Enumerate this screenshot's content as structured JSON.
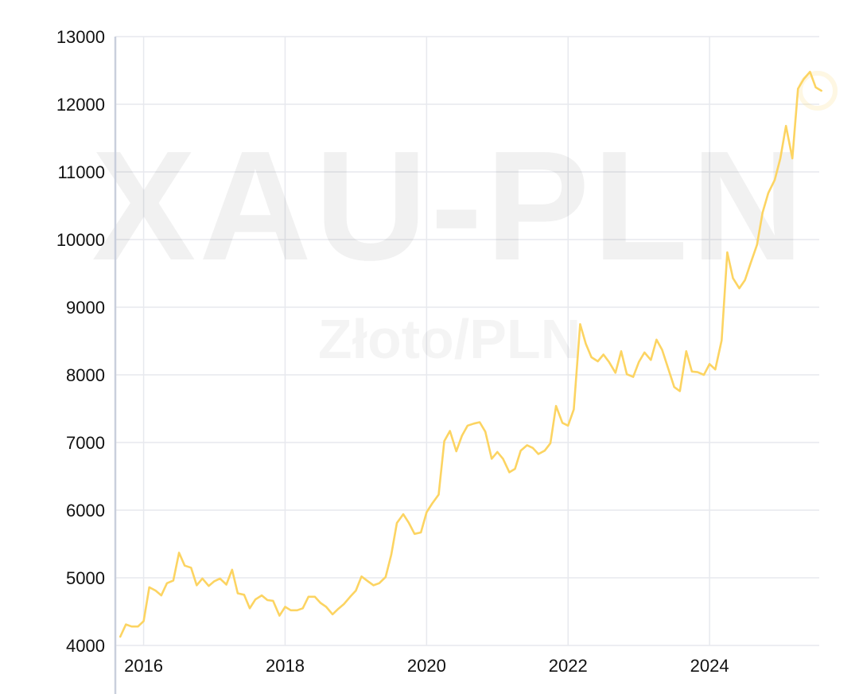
{
  "watermark": {
    "main": "XAU-PLN",
    "sub": "Złoto/PLN"
  },
  "colors": {
    "line": "#fcd462",
    "grid": "#e7e9ee",
    "axis": "#c9cfdc",
    "text": "#111111",
    "background": "#ffffff"
  },
  "chart_data": {
    "type": "line",
    "title": "",
    "xlabel": "",
    "ylabel": "",
    "xlim": [
      2015.6,
      2025.55
    ],
    "ylim": [
      4000,
      13000
    ],
    "x_ticks": [
      {
        "value": 2016,
        "label": "2016"
      },
      {
        "value": 2018,
        "label": "2018"
      },
      {
        "value": 2020,
        "label": "2020"
      },
      {
        "value": 2022,
        "label": "2022"
      },
      {
        "value": 2024,
        "label": "2024"
      }
    ],
    "y_ticks": [
      {
        "value": 4000,
        "label": "4000"
      },
      {
        "value": 5000,
        "label": "5000"
      },
      {
        "value": 6000,
        "label": "6000"
      },
      {
        "value": 7000,
        "label": "7000"
      },
      {
        "value": 8000,
        "label": "8000"
      },
      {
        "value": 9000,
        "label": "9000"
      },
      {
        "value": 10000,
        "label": "10000"
      },
      {
        "value": 11000,
        "label": "11000"
      },
      {
        "value": 12000,
        "label": "12000"
      },
      {
        "value": 13000,
        "label": "13000"
      }
    ],
    "grid": true,
    "legend": "none",
    "series": [
      {
        "points": [
          [
            2015.67,
            4130
          ],
          [
            2015.75,
            4310
          ],
          [
            2015.83,
            4280
          ],
          [
            2015.92,
            4280
          ],
          [
            2016.0,
            4360
          ],
          [
            2016.08,
            4860
          ],
          [
            2016.17,
            4810
          ],
          [
            2016.25,
            4740
          ],
          [
            2016.33,
            4920
          ],
          [
            2016.42,
            4960
          ],
          [
            2016.5,
            5370
          ],
          [
            2016.58,
            5180
          ],
          [
            2016.67,
            5150
          ],
          [
            2016.75,
            4890
          ],
          [
            2016.83,
            4990
          ],
          [
            2016.92,
            4880
          ],
          [
            2017.0,
            4950
          ],
          [
            2017.08,
            4990
          ],
          [
            2017.17,
            4900
          ],
          [
            2017.25,
            5120
          ],
          [
            2017.33,
            4770
          ],
          [
            2017.42,
            4750
          ],
          [
            2017.5,
            4550
          ],
          [
            2017.58,
            4680
          ],
          [
            2017.67,
            4740
          ],
          [
            2017.75,
            4670
          ],
          [
            2017.83,
            4660
          ],
          [
            2017.92,
            4440
          ],
          [
            2018.0,
            4570
          ],
          [
            2018.08,
            4520
          ],
          [
            2018.17,
            4520
          ],
          [
            2018.25,
            4550
          ],
          [
            2018.33,
            4720
          ],
          [
            2018.42,
            4720
          ],
          [
            2018.5,
            4630
          ],
          [
            2018.58,
            4570
          ],
          [
            2018.67,
            4460
          ],
          [
            2018.75,
            4540
          ],
          [
            2018.83,
            4610
          ],
          [
            2018.92,
            4720
          ],
          [
            2019.0,
            4810
          ],
          [
            2019.08,
            5020
          ],
          [
            2019.17,
            4950
          ],
          [
            2019.25,
            4890
          ],
          [
            2019.33,
            4920
          ],
          [
            2019.42,
            5010
          ],
          [
            2019.5,
            5340
          ],
          [
            2019.58,
            5810
          ],
          [
            2019.67,
            5940
          ],
          [
            2019.75,
            5810
          ],
          [
            2019.83,
            5650
          ],
          [
            2019.92,
            5670
          ],
          [
            2020.0,
            5970
          ],
          [
            2020.08,
            6100
          ],
          [
            2020.17,
            6230
          ],
          [
            2020.25,
            7020
          ],
          [
            2020.33,
            7170
          ],
          [
            2020.42,
            6870
          ],
          [
            2020.5,
            7100
          ],
          [
            2020.58,
            7250
          ],
          [
            2020.67,
            7280
          ],
          [
            2020.75,
            7300
          ],
          [
            2020.83,
            7160
          ],
          [
            2020.92,
            6760
          ],
          [
            2021.0,
            6860
          ],
          [
            2021.08,
            6760
          ],
          [
            2021.17,
            6560
          ],
          [
            2021.25,
            6610
          ],
          [
            2021.33,
            6880
          ],
          [
            2021.42,
            6960
          ],
          [
            2021.5,
            6920
          ],
          [
            2021.58,
            6830
          ],
          [
            2021.67,
            6880
          ],
          [
            2021.75,
            6990
          ],
          [
            2021.83,
            7540
          ],
          [
            2021.92,
            7290
          ],
          [
            2022.0,
            7250
          ],
          [
            2022.08,
            7490
          ],
          [
            2022.17,
            8750
          ],
          [
            2022.25,
            8460
          ],
          [
            2022.33,
            8260
          ],
          [
            2022.42,
            8200
          ],
          [
            2022.5,
            8300
          ],
          [
            2022.58,
            8190
          ],
          [
            2022.67,
            8030
          ],
          [
            2022.75,
            8350
          ],
          [
            2022.83,
            8010
          ],
          [
            2022.92,
            7970
          ],
          [
            2023.0,
            8190
          ],
          [
            2023.08,
            8330
          ],
          [
            2023.17,
            8220
          ],
          [
            2023.25,
            8520
          ],
          [
            2023.33,
            8370
          ],
          [
            2023.42,
            8080
          ],
          [
            2023.5,
            7820
          ],
          [
            2023.58,
            7760
          ],
          [
            2023.67,
            8350
          ],
          [
            2023.75,
            8050
          ],
          [
            2023.83,
            8040
          ],
          [
            2023.92,
            8000
          ],
          [
            2024.0,
            8160
          ],
          [
            2024.08,
            8080
          ],
          [
            2024.17,
            8510
          ],
          [
            2024.25,
            9810
          ],
          [
            2024.33,
            9430
          ],
          [
            2024.42,
            9280
          ],
          [
            2024.5,
            9400
          ],
          [
            2024.58,
            9650
          ],
          [
            2024.67,
            9920
          ],
          [
            2024.75,
            10400
          ],
          [
            2024.83,
            10690
          ],
          [
            2024.92,
            10880
          ],
          [
            2025.0,
            11200
          ],
          [
            2025.08,
            11680
          ],
          [
            2025.17,
            11200
          ],
          [
            2025.25,
            12230
          ],
          [
            2025.33,
            12370
          ],
          [
            2025.42,
            12480
          ],
          [
            2025.5,
            12250
          ],
          [
            2025.58,
            12200
          ]
        ]
      }
    ]
  }
}
